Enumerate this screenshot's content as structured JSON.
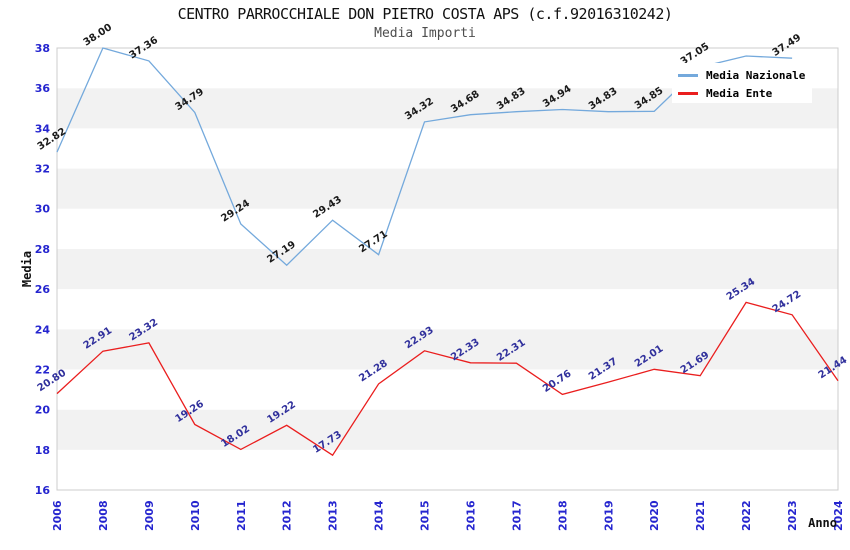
{
  "chart_data": {
    "type": "line",
    "title": "CENTRO PARROCCHIALE DON PIETRO COSTA APS (c.f.92016310242)",
    "subtitle": "Media Importi",
    "xlabel": "Anno",
    "ylabel": "Media",
    "ylim": [
      16,
      38
    ],
    "ytick_step": 2,
    "categories": [
      "2006",
      "2008",
      "2009",
      "2010",
      "2011",
      "2012",
      "2013",
      "2014",
      "2015",
      "2016",
      "2017",
      "2018",
      "2019",
      "2020",
      "2021",
      "2022",
      "2023",
      "2024"
    ],
    "series": [
      {
        "name": "Media Nazionale",
        "color": "#74a9dc",
        "label_color": "#1a1a1a",
        "values": [
          32.82,
          38.0,
          37.36,
          34.79,
          29.24,
          27.19,
          29.43,
          27.71,
          34.32,
          34.68,
          34.83,
          34.94,
          34.83,
          34.85,
          37.05,
          37.6,
          37.49,
          null
        ],
        "labels": [
          "32.82",
          "38.00",
          "37.36",
          "34.79",
          "29.24",
          "27.19",
          "29.43",
          "27.71",
          "34.32",
          "34.68",
          "34.83",
          "34.94",
          "34.83",
          "34.85",
          "37.05",
          "",
          "37.49",
          ""
        ]
      },
      {
        "name": "Media Ente",
        "color": "#ea1e1e",
        "label_color": "#30309c",
        "values": [
          20.8,
          22.91,
          23.32,
          19.26,
          18.02,
          19.22,
          17.73,
          21.28,
          22.93,
          22.33,
          22.31,
          20.76,
          21.37,
          22.01,
          21.69,
          25.34,
          24.72,
          21.44
        ],
        "labels": [
          "20.80",
          "22.91",
          "23.32",
          "19.26",
          "18.02",
          "19.22",
          "17.73",
          "21.28",
          "22.93",
          "22.33",
          "22.31",
          "20.76",
          "21.37",
          "22.01",
          "21.69",
          "25.34",
          "24.72",
          "21.44"
        ]
      }
    ],
    "legend_position": "top-right",
    "grid": "horizontal-bands",
    "band_color": "#f2f2f2",
    "band_alt_color": "#ffffff",
    "frame_color": "#cccccc",
    "axis_tick_color": "#2525cf"
  }
}
